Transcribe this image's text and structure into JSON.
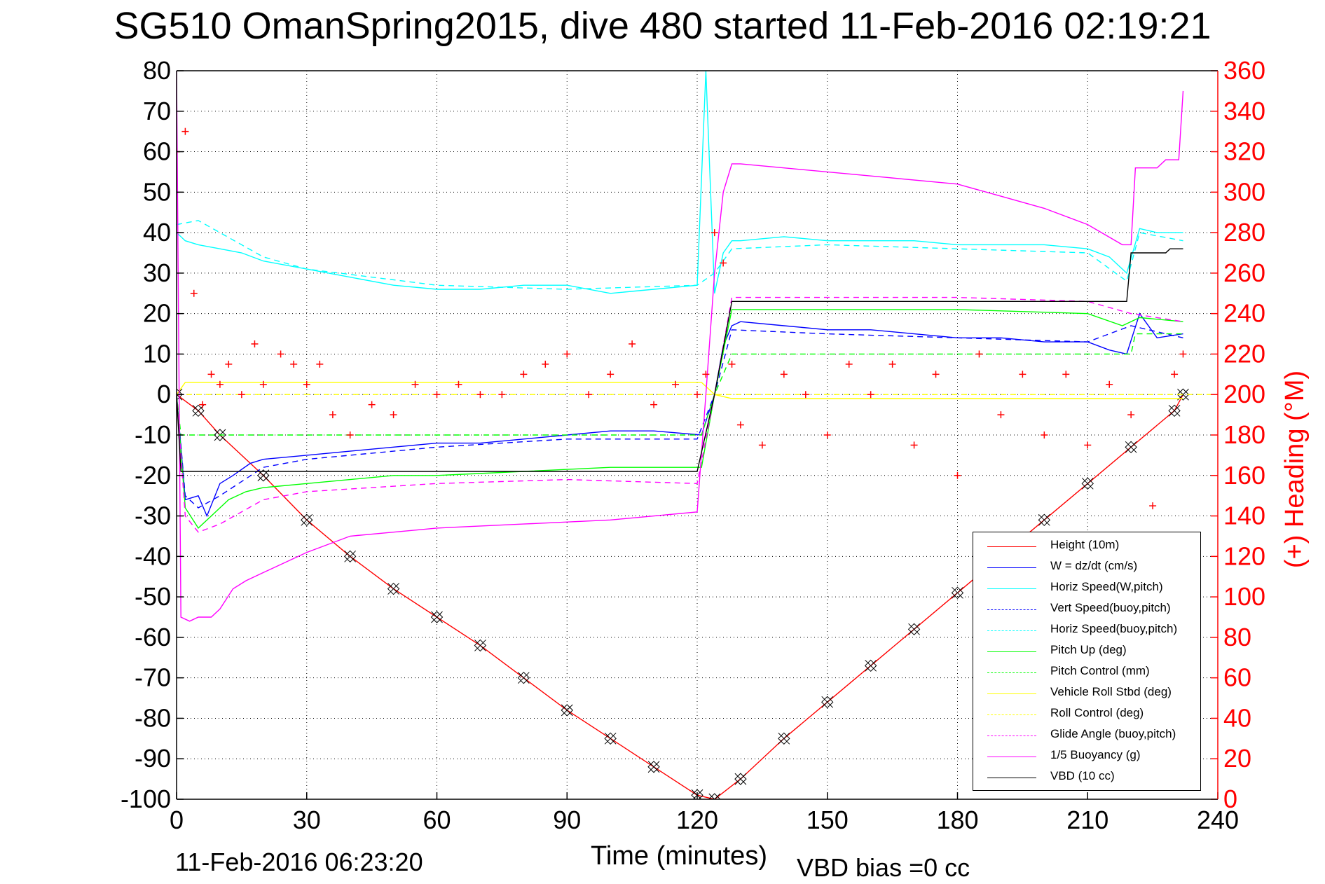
{
  "title": "SG510 OmanSpring2015, dive 480 started 11-Feb-2016 02:19:21",
  "footer_left": "11-Feb-2016 06:23:20",
  "footer_right": "VBD bias =0 cc",
  "colors": {
    "height": "#ff0000",
    "w": "#0000ff",
    "horiz": "#00ffff",
    "pitch": "#00ff00",
    "roll": "#ffff00",
    "glide": "#ff00ff",
    "buoy": "#ff00ff",
    "vbd": "#000000",
    "heading": "#ff0000"
  },
  "chart_data": {
    "type": "line",
    "xlabel": "Time (minutes)",
    "ylabel_right": "(+) Heading (°M)",
    "xlim": [
      0,
      240
    ],
    "ylim_left": [
      -100,
      80
    ],
    "ylim_right": [
      0,
      360
    ],
    "x_ticks": [
      0,
      30,
      60,
      90,
      120,
      150,
      180,
      210,
      240
    ],
    "y_ticks_left": [
      80,
      70,
      60,
      50,
      40,
      30,
      20,
      10,
      0,
      -10,
      -20,
      -30,
      -40,
      -50,
      -60,
      -70,
      -80,
      -90,
      -100
    ],
    "y_ticks_right": [
      360,
      340,
      320,
      300,
      280,
      260,
      240,
      220,
      200,
      180,
      160,
      140,
      120,
      100,
      80,
      60,
      40,
      20,
      0
    ],
    "grid": true,
    "legend_position": "lower-right",
    "series": [
      {
        "name": "Height (10m)",
        "color": "#ff0000",
        "dash": false,
        "axis": "left",
        "x": [
          0,
          5,
          10,
          20,
          30,
          40,
          50,
          60,
          70,
          80,
          90,
          100,
          110,
          120,
          124,
          130,
          140,
          150,
          160,
          170,
          180,
          190,
          200,
          210,
          220,
          230,
          232
        ],
        "y": [
          0,
          -4,
          -10,
          -20,
          -31,
          -40,
          -48,
          -55,
          -62,
          -70,
          -78,
          -85,
          -92,
          -99,
          -100,
          -95,
          -85,
          -76,
          -67,
          -58,
          -49,
          -40,
          -31,
          -22,
          -13,
          -4,
          0
        ]
      },
      {
        "name": "W = dz/dt (cm/s)",
        "color": "#0000ff",
        "dash": false,
        "axis": "left",
        "x": [
          0,
          2,
          5,
          7,
          10,
          13,
          17,
          20,
          30,
          40,
          50,
          60,
          70,
          80,
          90,
          100,
          110,
          121,
          124,
          126,
          128,
          130,
          140,
          150,
          160,
          170,
          180,
          190,
          200,
          210,
          215,
          219,
          222,
          226,
          232
        ],
        "y": [
          0,
          -26,
          -25,
          -30,
          -22,
          -20,
          -17,
          -16,
          -15,
          -14,
          -13,
          -12,
          -12,
          -11,
          -10,
          -9,
          -9,
          -10,
          0,
          12,
          17,
          18,
          17,
          16,
          16,
          15,
          14,
          14,
          13,
          13,
          11,
          10,
          20,
          14,
          15
        ]
      },
      {
        "name": "Horiz Speed(W,pitch)",
        "color": "#00ffff",
        "dash": false,
        "axis": "left",
        "x": [
          0,
          2,
          5,
          10,
          15,
          20,
          30,
          40,
          50,
          60,
          70,
          80,
          90,
          100,
          110,
          120,
          122,
          124,
          126,
          128,
          130,
          140,
          150,
          160,
          170,
          180,
          190,
          200,
          210,
          215,
          219,
          222,
          226,
          232
        ],
        "y": [
          40,
          38,
          37,
          36,
          35,
          33,
          31,
          29,
          27,
          26,
          26,
          27,
          27,
          25,
          26,
          27,
          80,
          25,
          35,
          38,
          38,
          39,
          38,
          38,
          38,
          37,
          37,
          37,
          36,
          34,
          30,
          41,
          40,
          40
        ]
      },
      {
        "name": "Vert Speed(buoy,pitch)",
        "color": "#0000ff",
        "dash": true,
        "axis": "left",
        "x": [
          0,
          2,
          5,
          10,
          20,
          30,
          60,
          90,
          120,
          124,
          128,
          150,
          180,
          210,
          220,
          232
        ],
        "y": [
          0,
          -25,
          -28,
          -25,
          -18,
          -16,
          -13,
          -11,
          -11,
          0,
          16,
          15,
          14,
          13,
          17,
          14
        ]
      },
      {
        "name": "Horiz Speed(buoy,pitch)",
        "color": "#00ffff",
        "dash": true,
        "axis": "left",
        "x": [
          0,
          5,
          10,
          20,
          30,
          60,
          90,
          120,
          124,
          128,
          150,
          180,
          210,
          219,
          222,
          232
        ],
        "y": [
          42,
          43,
          40,
          34,
          31,
          27,
          26,
          27,
          30,
          36,
          37,
          36,
          35,
          28,
          40,
          38
        ]
      },
      {
        "name": "Pitch Up (deg)",
        "color": "#00ff00",
        "dash": false,
        "axis": "left",
        "x": [
          0,
          2,
          5,
          8,
          12,
          16,
          20,
          30,
          40,
          50,
          60,
          80,
          100,
          120,
          121,
          124,
          128,
          130,
          150,
          180,
          210,
          218,
          222,
          232
        ],
        "y": [
          0,
          -28,
          -33,
          -30,
          -26,
          -24,
          -23,
          -22,
          -21,
          -20,
          -20,
          -19,
          -18,
          -18,
          -18,
          0,
          21,
          21,
          21,
          21,
          20,
          17,
          19,
          18
        ]
      },
      {
        "name": "Pitch Control (mm)",
        "color": "#00ff00",
        "dash": true,
        "axis": "left",
        "x": [
          0,
          1,
          2,
          120,
          121,
          124,
          128,
          220,
          221,
          232
        ],
        "y": [
          0,
          -10,
          -10,
          -10,
          -10,
          0,
          10,
          10,
          15,
          15
        ]
      },
      {
        "name": "Vehicle Roll Stbd (deg)",
        "color": "#ffff00",
        "dash": false,
        "axis": "left",
        "x": [
          0,
          2,
          5,
          30,
          60,
          90,
          120,
          121,
          124,
          128,
          150,
          180,
          210,
          232
        ],
        "y": [
          0,
          3,
          3,
          3,
          3,
          3,
          3,
          3,
          0,
          -1,
          -1,
          -1,
          -1,
          -1
        ]
      },
      {
        "name": "Roll Control (deg)",
        "color": "#ffff00",
        "dash": true,
        "axis": "left",
        "x": [
          0,
          240
        ],
        "y": [
          0,
          0
        ]
      },
      {
        "name": "Glide Angle (buoy,pitch)",
        "color": "#ff00ff",
        "dash": true,
        "axis": "left",
        "x": [
          0,
          2,
          5,
          10,
          20,
          30,
          60,
          90,
          120,
          124,
          128,
          150,
          180,
          210,
          220,
          232
        ],
        "y": [
          0,
          -30,
          -34,
          -32,
          -26,
          -24,
          -22,
          -21,
          -22,
          0,
          24,
          24,
          24,
          23,
          20,
          18
        ]
      },
      {
        "name": "1/5 Buoyancy (g)",
        "color": "#ff00ff",
        "dash": false,
        "axis": "left",
        "x": [
          0,
          1,
          3,
          5,
          8,
          10,
          13,
          16,
          20,
          30,
          40,
          50,
          60,
          80,
          100,
          120,
          122,
          124,
          126,
          128,
          130,
          140,
          160,
          180,
          190,
          200,
          210,
          218,
          220,
          221,
          226,
          228,
          231,
          232
        ],
        "y": [
          80,
          -55,
          -56,
          -55,
          -55,
          -53,
          -48,
          -46,
          -44,
          -39,
          -35,
          -34,
          -33,
          -32,
          -31,
          -29,
          0,
          30,
          50,
          57,
          57,
          56,
          54,
          52,
          49,
          46,
          42,
          37,
          37,
          56,
          56,
          58,
          58,
          75
        ]
      },
      {
        "name": "VBD (10 cc)",
        "color": "#000000",
        "dash": false,
        "axis": "left",
        "x": [
          0,
          1,
          3,
          120,
          124,
          128,
          130,
          190,
          219,
          220,
          223,
          228,
          229,
          232
        ],
        "y": [
          0,
          -19,
          -19,
          -19,
          0,
          23,
          23,
          23,
          23,
          35,
          35,
          35,
          36,
          36
        ]
      },
      {
        "name": "Heading",
        "color": "#ff0000",
        "dash": false,
        "axis": "right",
        "marker": "+",
        "x": [
          0,
          2,
          4,
          6,
          8,
          10,
          12,
          15,
          18,
          20,
          24,
          27,
          30,
          33,
          36,
          40,
          45,
          50,
          55,
          60,
          65,
          70,
          75,
          80,
          85,
          90,
          95,
          100,
          105,
          110,
          115,
          120,
          122,
          124,
          126,
          128,
          130,
          135,
          140,
          145,
          150,
          155,
          160,
          165,
          170,
          175,
          180,
          185,
          190,
          195,
          200,
          205,
          210,
          215,
          220,
          225,
          230,
          232
        ],
        "y": [
          320,
          330,
          250,
          195,
          210,
          205,
          215,
          200,
          225,
          205,
          220,
          215,
          205,
          215,
          190,
          180,
          195,
          190,
          205,
          200,
          205,
          200,
          200,
          210,
          215,
          220,
          200,
          210,
          225,
          195,
          205,
          200,
          210,
          280,
          265,
          215,
          185,
          175,
          210,
          200,
          180,
          215,
          200,
          215,
          175,
          210,
          160,
          220,
          190,
          210,
          180,
          210,
          175,
          205,
          190,
          145,
          210,
          220
        ]
      }
    ]
  }
}
